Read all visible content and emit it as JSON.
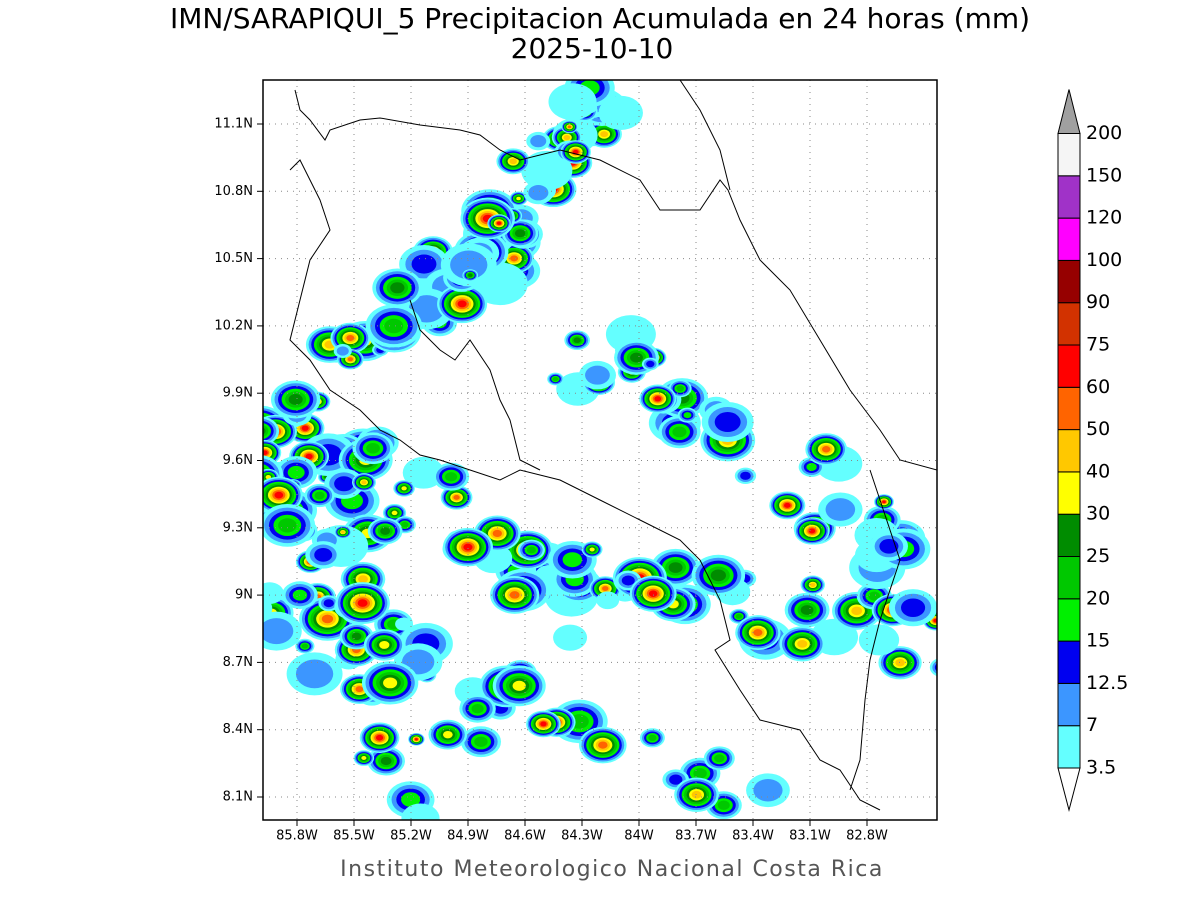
{
  "header": {
    "title": "IMN/SARAPIQUI_5 Precipitacion Acumulada en 24 horas (mm)",
    "subtitle": "2025-10-10"
  },
  "map": {
    "x_labels": [
      "85.8W",
      "85.5W",
      "85.2W",
      "84.9W",
      "84.6W",
      "84.3W",
      "84W",
      "83.7W",
      "83.4W",
      "83.1W",
      "82.8W"
    ],
    "y_labels": [
      "11.1N",
      "10.8N",
      "10.5N",
      "10.2N",
      "9.9N",
      "9.6N",
      "9.3N",
      "9N",
      "8.7N",
      "8.4N",
      "8.1N"
    ],
    "grid": true
  },
  "colorbar": {
    "under_color": "#ffffff",
    "over_color": "#a0a0a0",
    "levels": [
      {
        "label": "3.5",
        "color": "#64ffff"
      },
      {
        "label": "7",
        "color": "#3c96ff"
      },
      {
        "label": "12.5",
        "color": "#0000f0"
      },
      {
        "label": "15",
        "color": "#00f000"
      },
      {
        "label": "20",
        "color": "#00c800"
      },
      {
        "label": "25",
        "color": "#008c00"
      },
      {
        "label": "30",
        "color": "#ffff00"
      },
      {
        "label": "40",
        "color": "#ffc800"
      },
      {
        "label": "50",
        "color": "#ff6400"
      },
      {
        "label": "60",
        "color": "#ff0000"
      },
      {
        "label": "75",
        "color": "#d23200"
      },
      {
        "label": "90",
        "color": "#960000"
      },
      {
        "label": "100",
        "color": "#ff00ff"
      },
      {
        "label": "120",
        "color": "#a032c8"
      },
      {
        "label": "150",
        "color": "#f5f5f5"
      },
      {
        "label": "200",
        "color": null
      }
    ]
  },
  "footer": {
    "credit": "Instituto Meteorologico Nacional Costa Rica"
  }
}
